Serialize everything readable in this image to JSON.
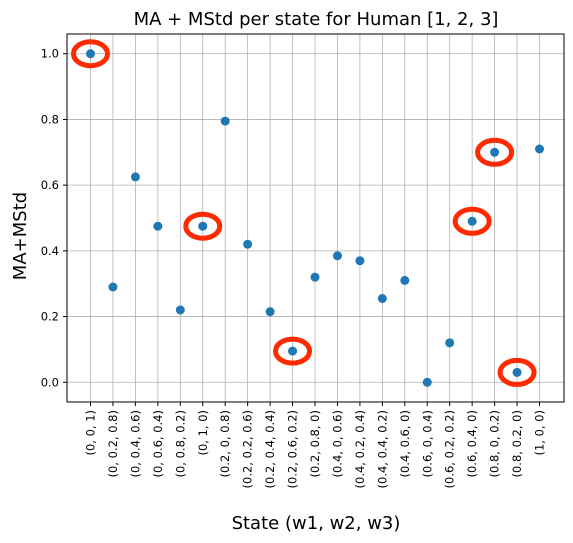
{
  "chart_data": {
    "type": "scatter",
    "title": "MA + MStd per state for Human [1, 2, 3]",
    "xlabel": "State (w1, w2, w3)",
    "ylabel": "MA+MStd",
    "categories": [
      "(0, 0, 1)",
      "(0, 0.2, 0.8)",
      "(0, 0.4, 0.6)",
      "(0, 0.6, 0.4)",
      "(0, 0.8, 0.2)",
      "(0, 1, 0)",
      "(0.2, 0, 0.8)",
      "(0.2, 0.2, 0.6)",
      "(0.2, 0.4, 0.4)",
      "(0.2, 0.6, 0.2)",
      "(0.2, 0.8, 0)",
      "(0.4, 0, 0.6)",
      "(0.4, 0.2, 0.4)",
      "(0.4, 0.4, 0.2)",
      "(0.4, 0.6, 0)",
      "(0.6, 0, 0.4)",
      "(0.6, 0.2, 0.2)",
      "(0.6, 0.4, 0)",
      "(0.8, 0, 0.2)",
      "(0.8, 0.2, 0)",
      "(1, 0, 0)"
    ],
    "values": [
      1.0,
      0.29,
      0.625,
      0.475,
      0.22,
      0.475,
      0.795,
      0.42,
      0.215,
      0.095,
      0.32,
      0.385,
      0.37,
      0.255,
      0.31,
      0.0,
      0.12,
      0.49,
      0.7,
      0.03,
      0.71
    ],
    "highlighted_indices": [
      0,
      5,
      9,
      17,
      18,
      19
    ],
    "ylim": [
      -0.06,
      1.06
    ],
    "yticks": [
      0.0,
      0.2,
      0.4,
      0.6,
      0.8,
      1.0
    ],
    "grid": true,
    "colors": {
      "marker": "#1f77b4",
      "highlight": "#ff2a00",
      "grid": "#b0b0b0"
    }
  }
}
